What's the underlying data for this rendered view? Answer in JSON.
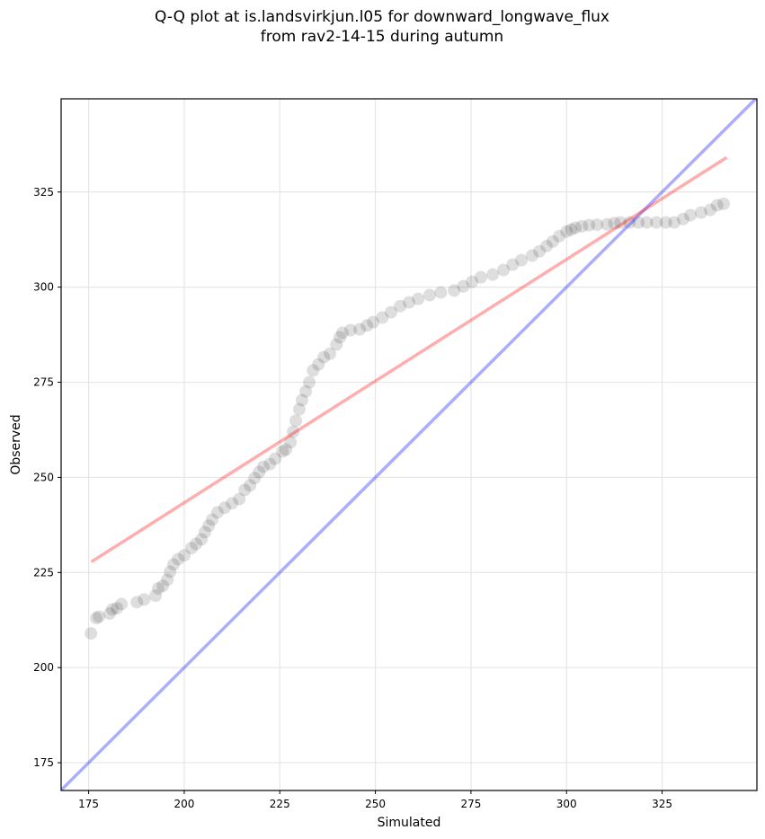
{
  "chart_data": {
    "type": "scatter",
    "title": "Q-Q plot at is.landsvirkjun.l05 for downward_longwave_flux",
    "subtitle": "from rav2-14-15 during autumn",
    "xlabel": "Simulated",
    "ylabel": "Observed",
    "xlim": [
      167.8,
      349.8
    ],
    "ylim": [
      167.7,
      349.5
    ],
    "xticks": [
      175,
      200,
      225,
      250,
      275,
      300,
      325
    ],
    "yticks": [
      175,
      200,
      225,
      250,
      275,
      300,
      325
    ],
    "xtick_labels": [
      "175",
      "200",
      "225",
      "250",
      "275",
      "300",
      "325"
    ],
    "ytick_labels": [
      "175",
      "200",
      "225",
      "250",
      "275",
      "300",
      "325"
    ],
    "grid": true,
    "colors": {
      "points": "#000000",
      "identity_line": "#0000ff",
      "fit_line": "#ff0000",
      "grid": "#e6e6e6"
    },
    "series": [
      {
        "name": "quantiles",
        "kind": "scatter",
        "x": [
          175.6,
          177.0,
          177.7,
          180.5,
          181.2,
          182.4,
          183.6,
          187.6,
          189.5,
          192.5,
          193.2,
          194.4,
          195.6,
          196.3,
          197.2,
          198.4,
          200.0,
          201.9,
          203.1,
          204.5,
          205.4,
          206.4,
          207.3,
          208.7,
          210.6,
          212.5,
          214.4,
          215.8,
          217.2,
          218.4,
          219.6,
          220.7,
          222.4,
          223.8,
          225.7,
          226.6,
          227.8,
          228.5,
          229.2,
          230.1,
          230.8,
          231.8,
          232.7,
          233.7,
          235.1,
          236.5,
          238.1,
          239.8,
          240.7,
          241.4,
          243.5,
          245.9,
          247.8,
          249.4,
          251.8,
          254.1,
          256.5,
          258.8,
          261.2,
          264.2,
          267.1,
          270.6,
          273.0,
          275.3,
          277.6,
          280.7,
          283.5,
          285.9,
          288.2,
          291.0,
          292.9,
          294.8,
          296.4,
          298.1,
          300.0,
          301.2,
          302.3,
          304.0,
          305.9,
          308.0,
          310.6,
          312.5,
          314.1,
          316.5,
          318.8,
          321.0,
          323.5,
          326.0,
          328.2,
          330.5,
          332.4,
          335.2,
          337.6,
          339.4,
          341.1
        ],
        "y": [
          209.0,
          213.0,
          213.4,
          214.2,
          215.3,
          215.6,
          216.7,
          217.2,
          217.9,
          218.9,
          220.8,
          221.5,
          223.1,
          225.2,
          227.1,
          228.5,
          229.5,
          231.4,
          232.5,
          233.7,
          235.6,
          237.3,
          238.9,
          240.8,
          242.0,
          243.2,
          244.3,
          246.7,
          247.9,
          249.8,
          251.4,
          252.8,
          253.5,
          254.9,
          256.8,
          257.3,
          259.2,
          262.0,
          264.9,
          267.9,
          270.3,
          272.6,
          275.0,
          278.1,
          279.7,
          281.6,
          282.5,
          284.9,
          286.8,
          288.0,
          288.7,
          288.9,
          289.9,
          290.8,
          292.0,
          293.4,
          295.0,
          296.0,
          296.9,
          297.9,
          298.6,
          299.1,
          300.2,
          301.4,
          302.6,
          303.3,
          304.5,
          305.9,
          307.1,
          308.3,
          309.4,
          310.8,
          312.0,
          313.4,
          314.6,
          315.1,
          315.6,
          316.0,
          316.3,
          316.4,
          316.5,
          316.8,
          317.0,
          317.0,
          317.0,
          317.0,
          317.0,
          317.0,
          317.0,
          317.9,
          318.9,
          319.6,
          320.3,
          321.5,
          321.9
        ]
      },
      {
        "name": "identity",
        "kind": "line",
        "x": [
          167.8,
          349.8
        ],
        "y": [
          167.8,
          349.8
        ]
      },
      {
        "name": "fit",
        "kind": "line",
        "x": [
          175.7,
          341.9
        ],
        "y": [
          227.8,
          334.1
        ]
      }
    ]
  }
}
